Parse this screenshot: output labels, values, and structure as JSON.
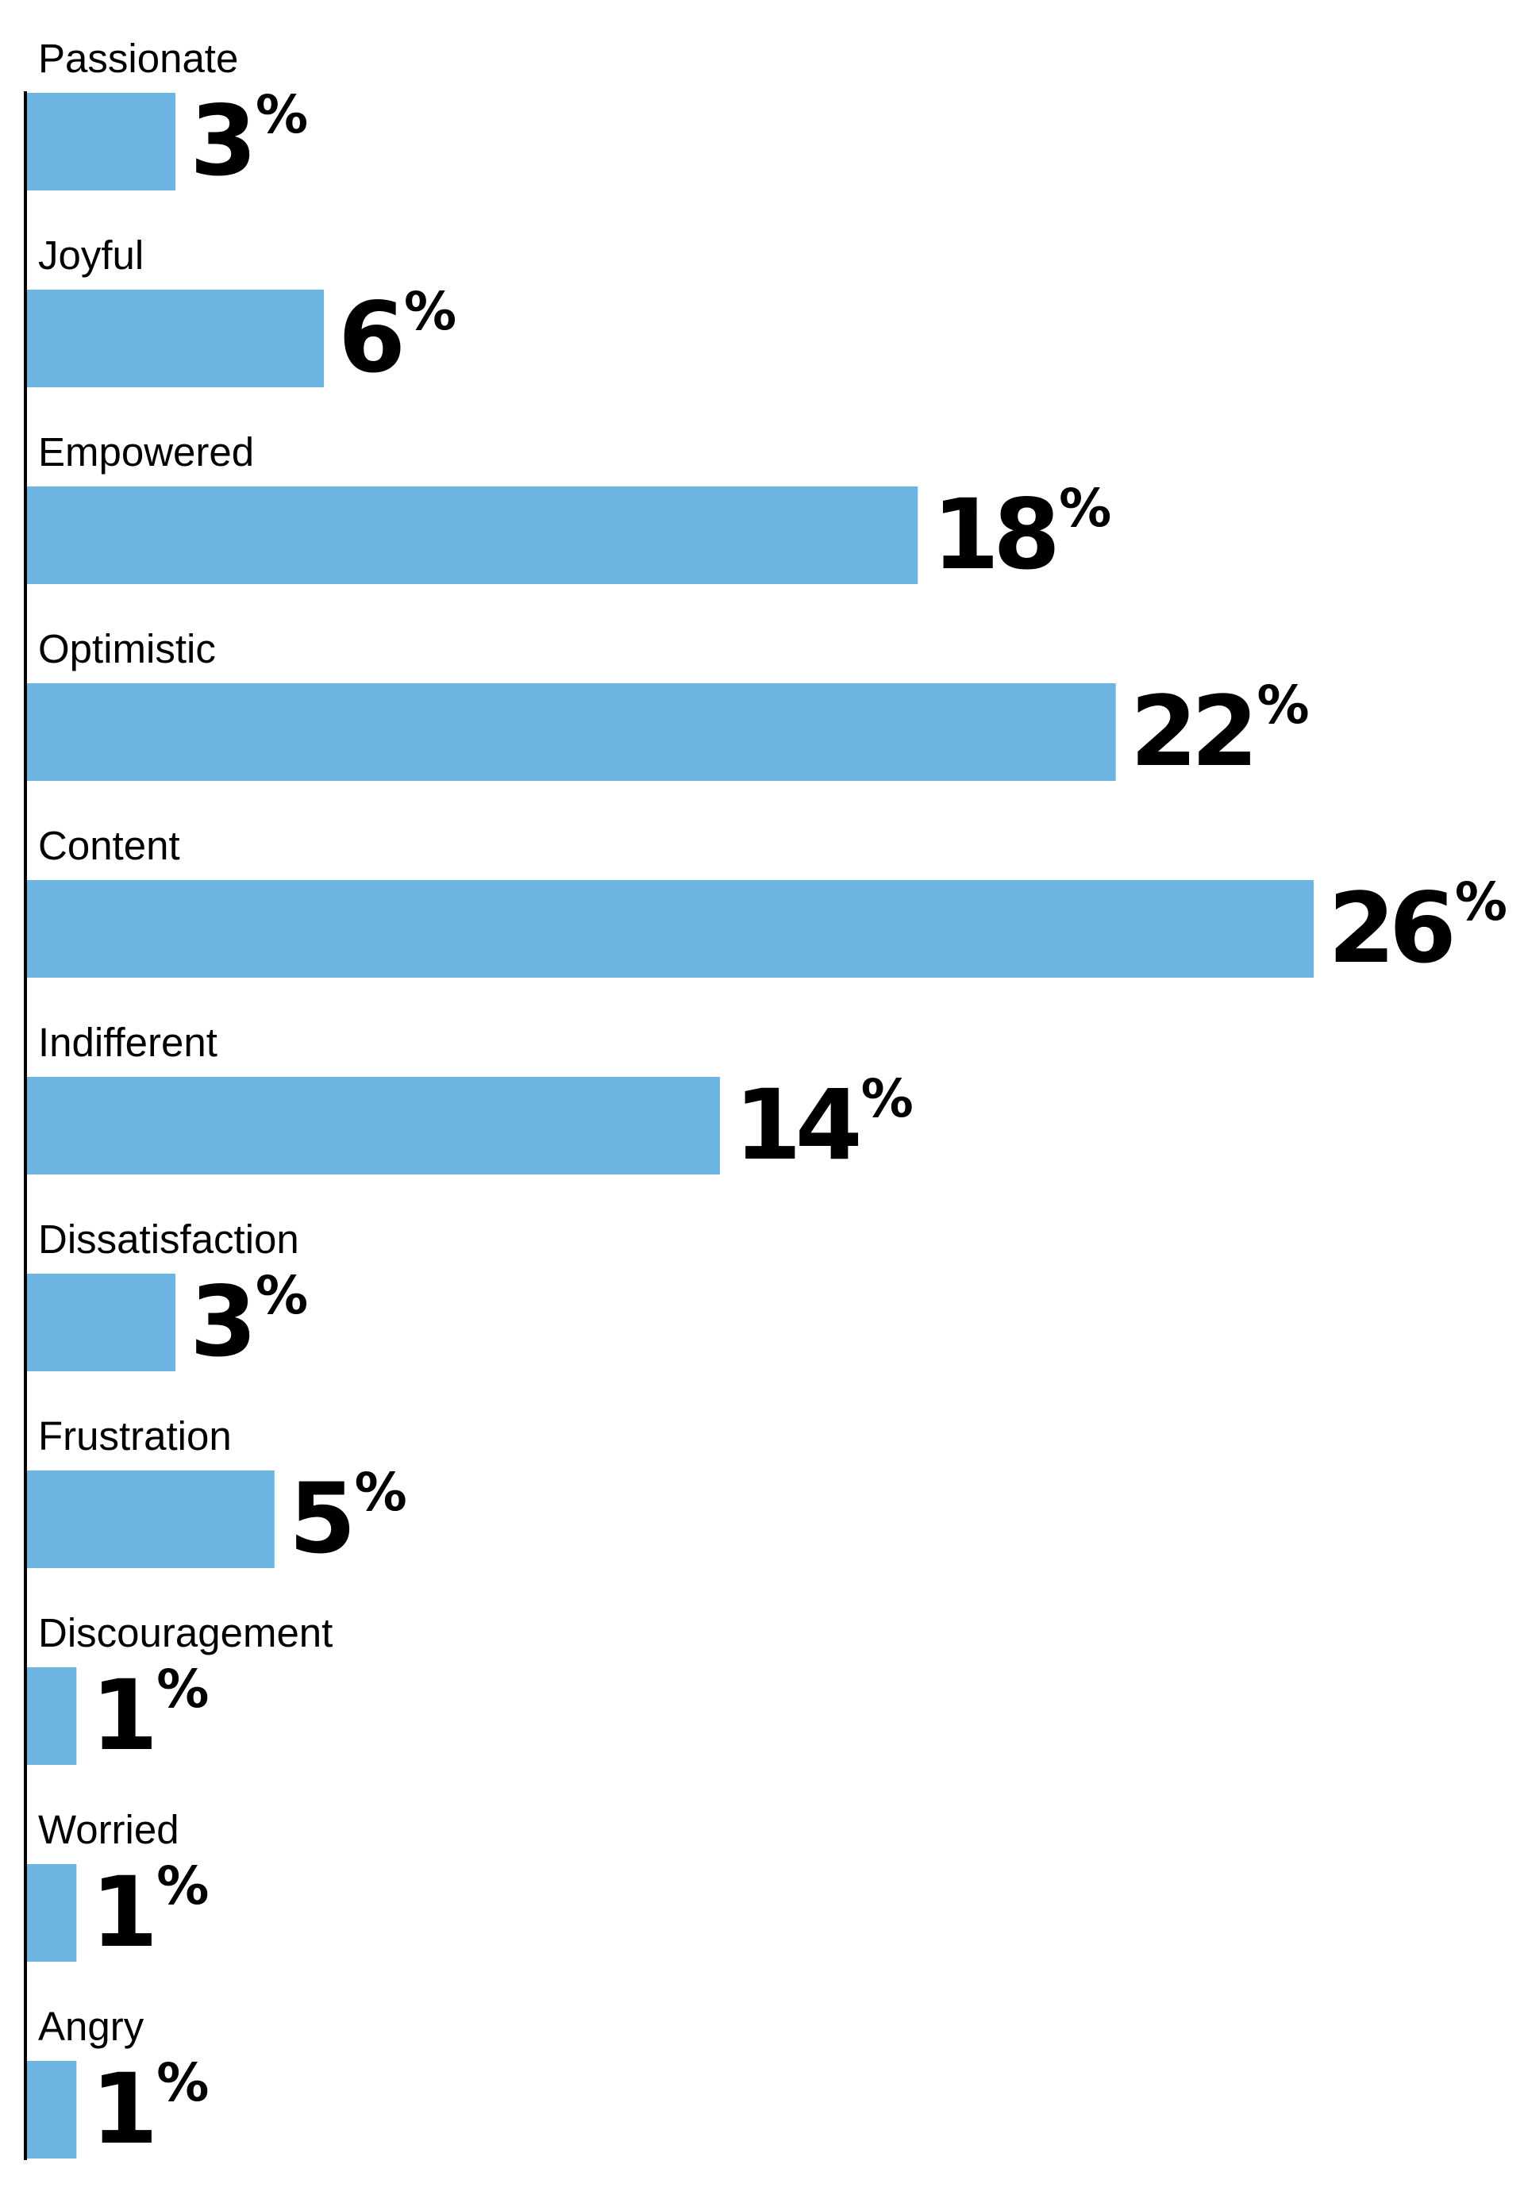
{
  "chart_data": {
    "type": "bar",
    "orientation": "horizontal",
    "categories": [
      "Passionate",
      "Joyful",
      "Empowered",
      "Optimistic",
      "Content",
      "Indifferent",
      "Dissatisfaction",
      "Frustration",
      "Discouragement",
      "Worried",
      "Angry"
    ],
    "values": [
      3,
      6,
      18,
      22,
      26,
      14,
      3,
      5,
      1,
      1,
      1
    ],
    "value_labels": [
      "3",
      "6",
      "18",
      "22",
      "26",
      "14",
      "3",
      "5",
      "1",
      "1",
      "1"
    ],
    "unit": "%",
    "title": "",
    "xlabel": "",
    "ylabel": "",
    "xlim": [
      0,
      26
    ],
    "grid": false,
    "legend": "none",
    "bar_color": "#6cb4e1",
    "axis_color": "#000000",
    "text_color": "#000000"
  }
}
